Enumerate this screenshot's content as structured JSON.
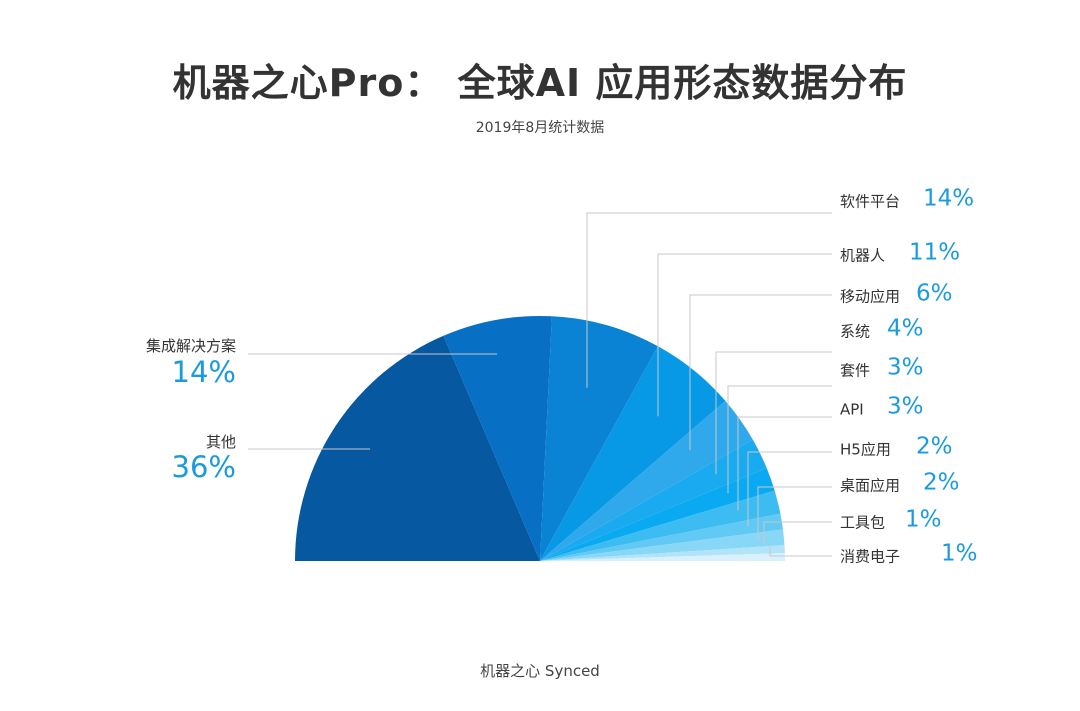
{
  "title": "机器之心Pro： 全球AI 应用形态数据分布",
  "subtitle": "2019年8月统计数据",
  "footer": "机器之心 Synced",
  "chart_data": {
    "type": "pie",
    "variant": "semicircle",
    "slices": [
      {
        "name": "其他",
        "value": 36,
        "label": "36%",
        "color": "#0658a0"
      },
      {
        "name": "集成解决方案",
        "value": 14,
        "label": "14%",
        "color": "#0870c4"
      },
      {
        "name": "软件平台",
        "value": 14,
        "label": "14%",
        "color": "#0a83d4"
      },
      {
        "name": "机器人",
        "value": 11,
        "label": "11%",
        "color": "#0799e6"
      },
      {
        "name": "移动应用",
        "value": 6,
        "label": "6%",
        "color": "#2fa9ec"
      },
      {
        "name": "系统",
        "value": 4,
        "label": "4%",
        "color": "#19aaf0"
      },
      {
        "name": "套件",
        "value": 3,
        "label": "3%",
        "color": "#09aaf2"
      },
      {
        "name": "API",
        "value": 3,
        "label": "3%",
        "color": "#3dbcf2"
      },
      {
        "name": "H5应用",
        "value": 2,
        "label": "2%",
        "color": "#61c9f4"
      },
      {
        "name": "桌面应用",
        "value": 2,
        "label": "2%",
        "color": "#88d7f6"
      },
      {
        "name": "工具包",
        "value": 1,
        "label": "1%",
        "color": "#b1e4f9"
      },
      {
        "name": "消费电子",
        "value": 1,
        "label": "1%",
        "color": "#d8f1fc"
      }
    ]
  }
}
